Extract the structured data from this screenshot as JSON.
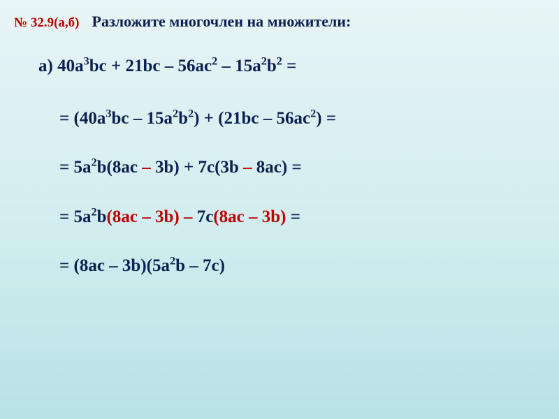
{
  "header": {
    "problem_number": "№ 32.9(а,б)",
    "instruction": "Разложите многочлен на множители:"
  },
  "colors": {
    "background_gradient_top": "#e8f4f5",
    "background_gradient_mid": "#d4eef0",
    "background_gradient_bottom": "#b8e2e6",
    "text_main": "#0a2050",
    "text_red": "#c00000"
  },
  "typography": {
    "header_number_fontsize": 19,
    "instruction_fontsize": 22,
    "math_fontsize": 25,
    "font_family": "Georgia, Times New Roman, serif"
  },
  "math": {
    "part_label": "а)",
    "original": {
      "t1": "40a",
      "t1_sup": "3",
      "t1_rest": "bc",
      "t2": "21bc",
      "t3": "56ac",
      "t3_sup": "2",
      "t4": "15a",
      "t4_sup": "2",
      "t4_rest": "b",
      "t4_sup2": "2"
    },
    "step1": {
      "g1_t1": "40a",
      "g1_t1_sup": "3",
      "g1_t1_rest": "bc",
      "g1_t2": "15a",
      "g1_t2_sup": "2",
      "g1_t2_rest": "b",
      "g1_t2_sup2": "2",
      "g2_t1": "21bc",
      "g2_t2": "56ac",
      "g2_t2_sup": "2"
    },
    "step2": {
      "f1": "5a",
      "f1_sup": "2",
      "f1_rest": "b",
      "b1_t1": "8ac",
      "b1_t2": "3b",
      "f2": "7c",
      "b2_t1": "3b",
      "b2_t2": "8ac"
    },
    "step3": {
      "f1": "5a",
      "f1_sup": "2",
      "f1_rest": "b",
      "common": "(8ac – 3b)",
      "minus": "–",
      "f2": "7c"
    },
    "step4": {
      "b1": "(8ac – 3b)",
      "b2_t1": "5a",
      "b2_sup": "2",
      "b2_rest": "b",
      "b2_t2": "7c"
    }
  }
}
